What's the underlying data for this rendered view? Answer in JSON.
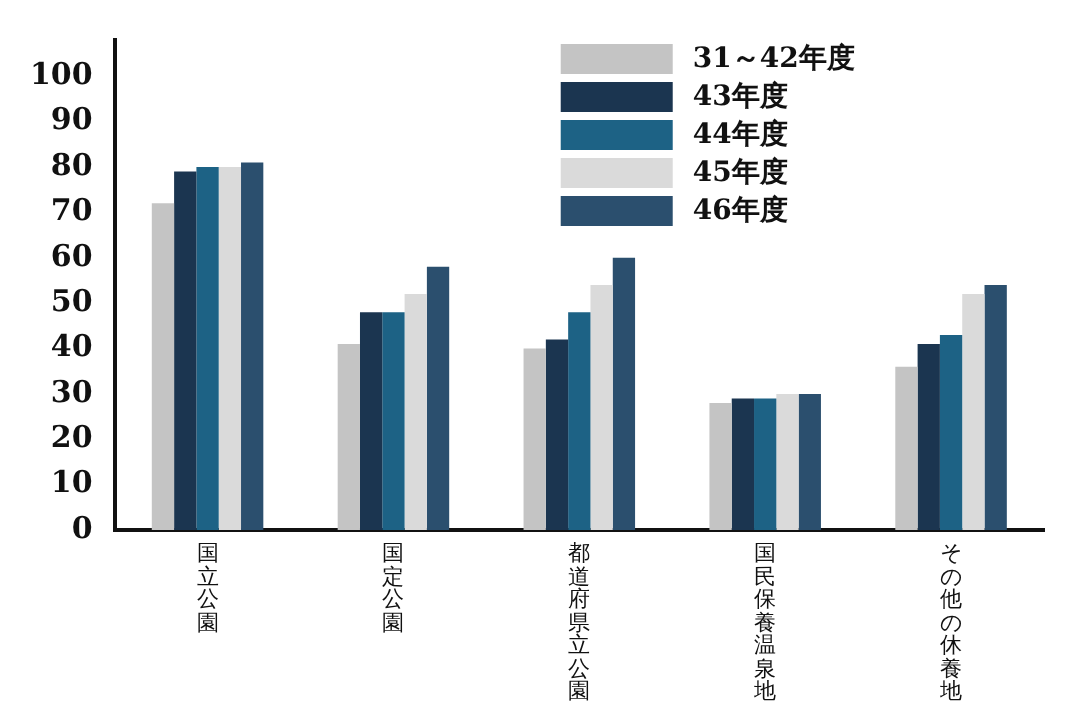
{
  "chart_data": {
    "type": "bar",
    "categories": [
      "国立公園",
      "国定公園",
      "都道府県立公園",
      "国民保養温泉地",
      "その他の休養地"
    ],
    "series": [
      {
        "name": "31～42年度",
        "color": "#c4c4c4",
        "values": [
          72,
          41,
          40,
          28,
          36
        ]
      },
      {
        "name": "43年度",
        "color": "#1b3550",
        "values": [
          79,
          48,
          42,
          29,
          41
        ]
      },
      {
        "name": "44年度",
        "color": "#1d6285",
        "values": [
          80,
          48,
          48,
          29,
          43
        ]
      },
      {
        "name": "45年度",
        "color": "#dadada",
        "values": [
          80,
          52,
          54,
          30,
          52
        ]
      },
      {
        "name": "46年度",
        "color": "#2b4f6e",
        "values": [
          81,
          58,
          60,
          30,
          54
        ]
      }
    ],
    "ylim": [
      0,
      108
    ],
    "yticks": [
      0,
      10,
      20,
      30,
      40,
      50,
      60,
      70,
      80,
      90,
      100
    ],
    "grid": false,
    "legend": "top right"
  }
}
